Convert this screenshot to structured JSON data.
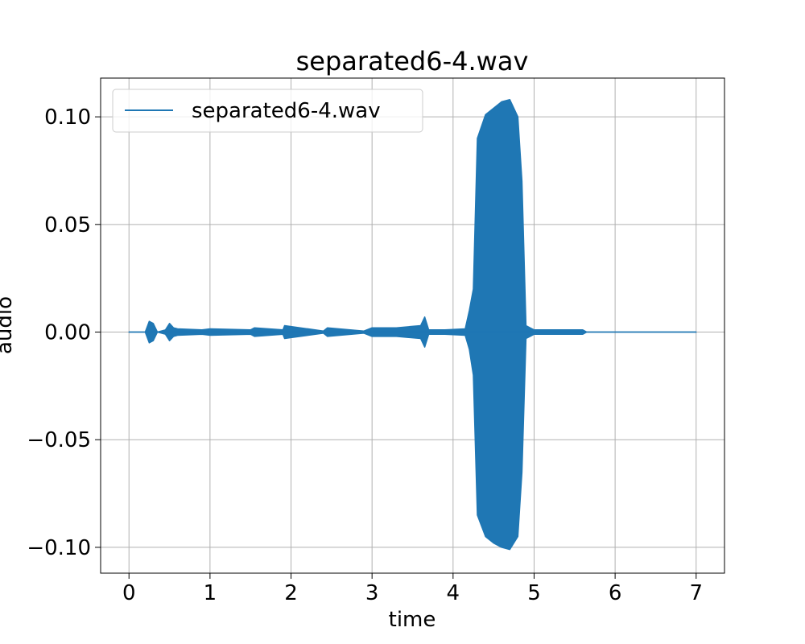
{
  "colors": {
    "series": "#1f77b4",
    "grid": "#b0b0b0",
    "axis": "#000000",
    "legend_border": "#cccccc"
  },
  "chart_data": {
    "type": "line",
    "title": "separated6-4.wav",
    "xlabel": "time",
    "ylabel": "audio",
    "xlim": [
      -0.35,
      7.35
    ],
    "ylim": [
      -0.112,
      0.118
    ],
    "xticks": [
      0,
      1,
      2,
      3,
      4,
      5,
      6,
      7
    ],
    "xtick_labels": [
      "0",
      "1",
      "2",
      "3",
      "4",
      "5",
      "6",
      "7"
    ],
    "yticks": [
      0.1,
      0.05,
      0.0,
      -0.05,
      -0.1
    ],
    "ytick_labels": [
      "0.10",
      "0.05",
      "0.00",
      "−0.05",
      "−0.10"
    ],
    "grid": true,
    "legend": {
      "position": "upper-left",
      "entries": [
        "separated6-4.wav"
      ]
    },
    "series": [
      {
        "name": "separated6-4.wav",
        "x_range": [
          0,
          7
        ],
        "envelope_note": "amplitude envelope of waveform",
        "envelope": {
          "x": [
            0.0,
            0.2,
            0.25,
            0.3,
            0.35,
            0.45,
            0.5,
            0.55,
            0.6,
            0.9,
            1.0,
            1.5,
            1.55,
            1.9,
            1.92,
            2.4,
            2.45,
            2.9,
            3.0,
            3.1,
            3.3,
            3.6,
            3.65,
            3.7,
            3.9,
            4.15,
            4.2,
            4.25,
            4.3,
            4.4,
            4.5,
            4.6,
            4.7,
            4.8,
            4.85,
            4.9,
            4.95,
            5.0,
            5.5,
            5.6,
            5.65,
            7.0
          ],
          "upper": [
            0.0,
            0.0,
            0.005,
            0.004,
            0.0,
            0.001,
            0.004,
            0.002,
            0.0015,
            0.001,
            0.0015,
            0.001,
            0.002,
            0.001,
            0.003,
            0.0005,
            0.002,
            0.0005,
            0.002,
            0.002,
            0.002,
            0.003,
            0.007,
            0.001,
            0.001,
            0.0015,
            0.01,
            0.02,
            0.09,
            0.101,
            0.104,
            0.107,
            0.108,
            0.1,
            0.07,
            0.003,
            0.002,
            0.001,
            0.001,
            0.001,
            0.0,
            0.0
          ],
          "lower": [
            0.0,
            0.0,
            -0.005,
            -0.004,
            0.0,
            -0.001,
            -0.004,
            -0.002,
            -0.0015,
            -0.001,
            -0.0015,
            -0.001,
            -0.002,
            -0.001,
            -0.003,
            -0.0005,
            -0.002,
            -0.0005,
            -0.002,
            -0.002,
            -0.002,
            -0.003,
            -0.007,
            -0.001,
            -0.001,
            -0.0015,
            -0.008,
            -0.02,
            -0.085,
            -0.095,
            -0.098,
            -0.1,
            -0.101,
            -0.095,
            -0.065,
            -0.003,
            -0.002,
            -0.001,
            -0.001,
            -0.001,
            0.0,
            0.0
          ]
        }
      }
    ]
  }
}
